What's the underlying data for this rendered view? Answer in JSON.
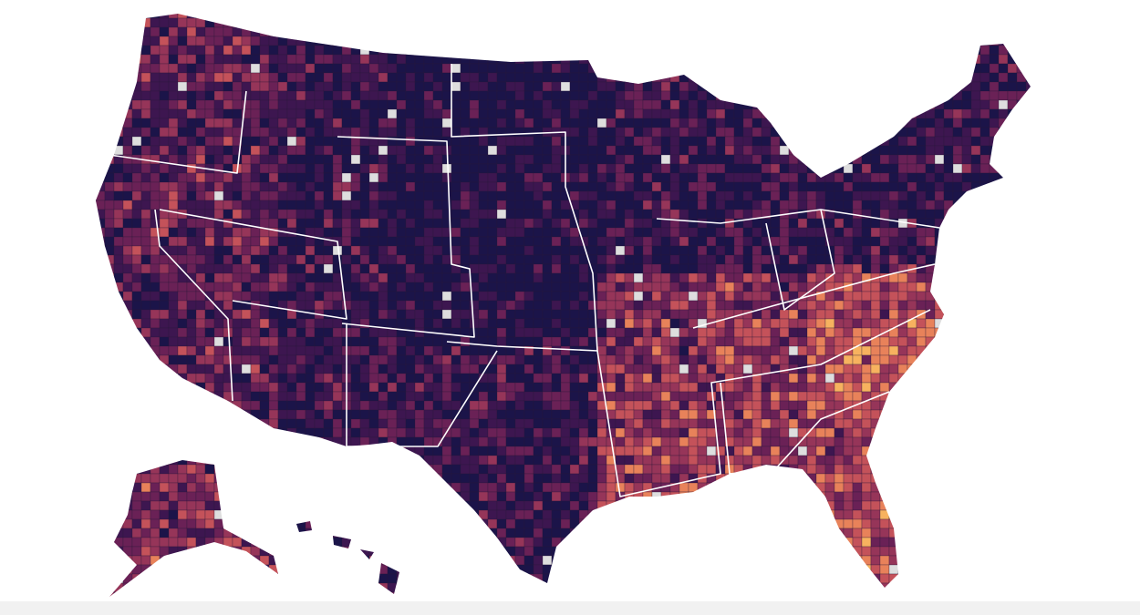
{
  "map": {
    "palette": [
      "#1b1449",
      "#3d1650",
      "#6a2156",
      "#963559",
      "#c4525a",
      "#e8825a",
      "#f7b25f",
      "#fce08a",
      "#dedede"
    ]
  }
}
